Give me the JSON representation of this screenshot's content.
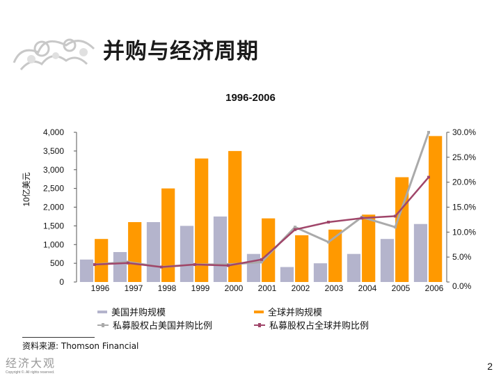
{
  "slide": {
    "title": "并购与经济周期",
    "source_note": "资料来源: Thomson Financial",
    "page_number": "2",
    "footer_brand": "经济大观",
    "footer_copyright": "Copyright ©. All rights reserved."
  },
  "colors": {
    "us_bar": "#b4b4cc",
    "global_bar": "#ff9900",
    "us_line": "#aaaaaa",
    "global_line": "#a0466a"
  },
  "chart_data": {
    "type": "bar",
    "title": "1996-2006",
    "ylabel": "10亿美元",
    "categories": [
      "1996",
      "1997",
      "1998",
      "1999",
      "2000",
      "2001",
      "2002",
      "2003",
      "2004",
      "2005",
      "2006"
    ],
    "ylim": [
      0,
      4000
    ],
    "y_ticks": [
      "0",
      "500",
      "1,000",
      "1,500",
      "2,000",
      "2,500",
      "3,000",
      "3,500",
      "4,000"
    ],
    "y2lim": [
      0,
      30
    ],
    "y2_ticks": [
      "0.0%",
      "5.0%",
      "10.0%",
      "15.0%",
      "20.0%",
      "25.0%",
      "30.0%"
    ],
    "series": [
      {
        "name": "美国并购规模",
        "kind": "bar",
        "color": "#b4b4cc",
        "values": [
          600,
          800,
          1600,
          1500,
          1750,
          750,
          400,
          500,
          750,
          1150,
          1550
        ]
      },
      {
        "name": "全球并购规模",
        "kind": "bar",
        "color": "#ff9900",
        "values": [
          1150,
          1600,
          2500,
          3300,
          3500,
          1700,
          1250,
          1400,
          1800,
          2800,
          3900
        ]
      },
      {
        "name": "私募股权占美国并购比例",
        "kind": "line",
        "axis": "right",
        "color": "#aaaaaa",
        "values": [
          3.5,
          4.0,
          3.0,
          3.5,
          3.5,
          4.0,
          11.0,
          8.0,
          13.0,
          11.0,
          30.0
        ]
      },
      {
        "name": "私募股权占全球并购比例",
        "kind": "line",
        "axis": "right",
        "color": "#a0466a",
        "values": [
          3.5,
          3.8,
          3.0,
          3.5,
          3.3,
          4.5,
          10.5,
          12.0,
          12.8,
          13.2,
          21.0
        ]
      }
    ],
    "legend": [
      "美国并购规模",
      "全球并购规模",
      "私募股权占美国并购比例",
      "私募股权占全球并购比例"
    ]
  }
}
